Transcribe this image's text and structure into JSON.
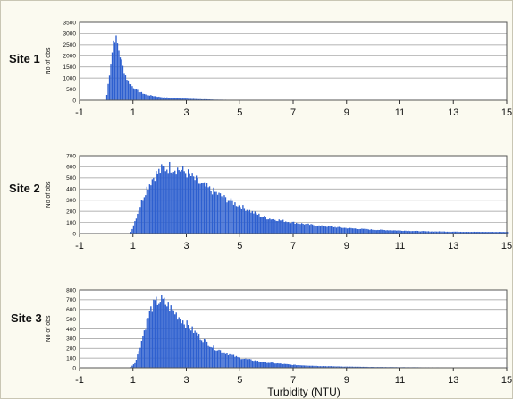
{
  "chart_data": {
    "type": "bar",
    "bin_width": 0.05,
    "xlim": [
      -1,
      15
    ],
    "xticks": [
      "-1",
      "1",
      "3",
      "5",
      "7",
      "9",
      "11",
      "13",
      "15"
    ],
    "xlabel": "Turbidity (NTU)",
    "ylabel": "No of obs",
    "grid": true,
    "bar_color": "#2d5fcf",
    "panels": [
      {
        "site_label": "Site 1",
        "ylim": [
          0,
          3500
        ],
        "yticks": [
          "0",
          "500",
          "1000",
          "1500",
          "2000",
          "2500",
          "3000",
          "3500"
        ],
        "x": [
          0.0,
          0.3,
          0.4,
          0.5,
          0.6,
          0.7,
          0.8,
          1.0,
          1.2,
          1.5,
          2.0,
          2.5,
          3.0,
          3.5,
          4.0,
          5.0,
          6.0
        ],
        "values": [
          0,
          2900,
          2650,
          2150,
          1600,
          1200,
          900,
          600,
          400,
          250,
          150,
          100,
          70,
          50,
          30,
          10,
          0
        ]
      },
      {
        "site_label": "Site 2",
        "ylim": [
          0,
          700
        ],
        "yticks": [
          "0",
          "100",
          "200",
          "300",
          "400",
          "500",
          "600",
          "700"
        ],
        "x": [
          0.9,
          1.0,
          1.2,
          1.5,
          1.8,
          2.1,
          2.4,
          2.7,
          3.0,
          3.5,
          4.0,
          4.5,
          5.0,
          5.5,
          6.0,
          7.0,
          8.0,
          9.0,
          10.0,
          12.0,
          14.0,
          15.0
        ],
        "values": [
          0,
          60,
          200,
          400,
          520,
          580,
          600,
          580,
          550,
          450,
          380,
          310,
          250,
          190,
          140,
          100,
          70,
          50,
          35,
          20,
          15,
          15
        ]
      },
      {
        "site_label": "Site 3",
        "ylim": [
          0,
          800
        ],
        "yticks": [
          "0",
          "100",
          "200",
          "300",
          "400",
          "500",
          "600",
          "700",
          "800"
        ],
        "x": [
          0.9,
          1.1,
          1.3,
          1.5,
          1.7,
          1.9,
          2.1,
          2.3,
          2.6,
          3.0,
          3.5,
          4.0,
          4.5,
          5.0,
          6.0,
          7.0,
          8.0,
          9.0,
          10.0,
          12.0,
          15.0
        ],
        "values": [
          0,
          60,
          250,
          460,
          620,
          680,
          690,
          640,
          560,
          450,
          320,
          210,
          150,
          100,
          55,
          30,
          18,
          12,
          8,
          5,
          2
        ]
      }
    ]
  }
}
